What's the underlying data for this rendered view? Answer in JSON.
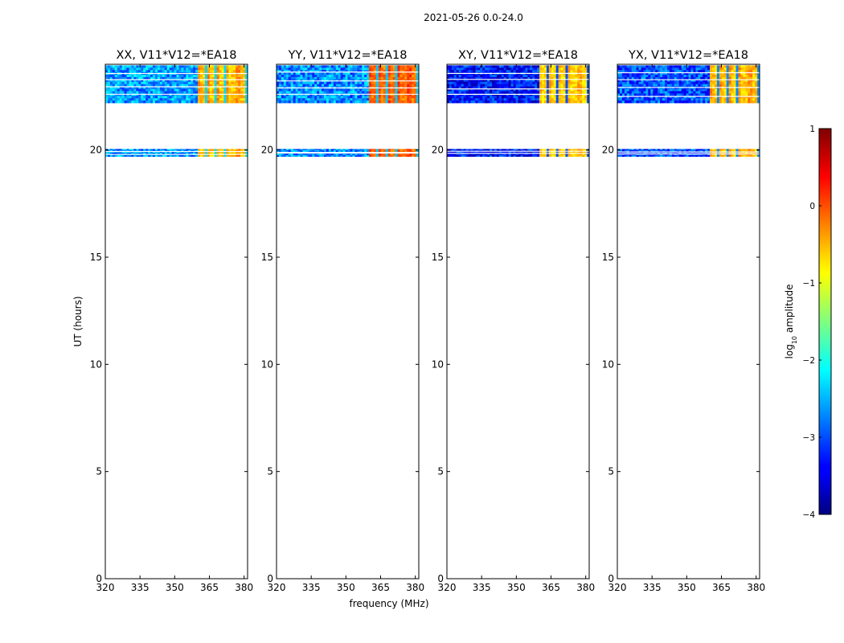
{
  "chart_data": {
    "type": "heatmap",
    "suptitle": "2021-05-26 0.0-24.0",
    "xlabel": "frequency (MHz)",
    "ylabel": "UT (hours)",
    "xlim": [
      320,
      381.5
    ],
    "ylim": [
      0,
      24
    ],
    "xticks": [
      320,
      335,
      350,
      365,
      380
    ],
    "yticks": [
      0,
      5,
      10,
      15,
      20
    ],
    "panels": [
      {
        "title": "XX, V11*V12=*EA18",
        "polarization": "XX"
      },
      {
        "title": "YY, V11*V12=*EA18",
        "polarization": "YY"
      },
      {
        "title": "XY, V11*V12=*EA18",
        "polarization": "XY"
      },
      {
        "title": "YX, V11*V12=*EA18",
        "polarization": "YX"
      }
    ],
    "data_blocks": [
      {
        "t_start": 22.2,
        "t_end": 23.95,
        "band": "upper"
      },
      {
        "t_start": 19.7,
        "t_end": 20.05,
        "band": "lower"
      }
    ],
    "rfi_band_mhz": [
      359.5,
      381
    ],
    "rfi_amplitude_log10": {
      "XX": -0.6,
      "YY": -0.2,
      "XY": -0.7,
      "YX": -0.6
    },
    "background_amplitude_log10": {
      "XX": -2.6,
      "YY": -2.7,
      "XY": -3.3,
      "YX": -3.0
    },
    "colorbar": {
      "label": "log",
      "label_sub": "10",
      "label_rest": " amplitude",
      "range": [
        -4,
        1
      ],
      "ticks": [
        "1",
        "0",
        "−1",
        "−2",
        "−3",
        "−4"
      ],
      "tick_values": [
        1,
        0,
        -1,
        -2,
        -3,
        -4
      ],
      "colormap": "jet"
    }
  }
}
